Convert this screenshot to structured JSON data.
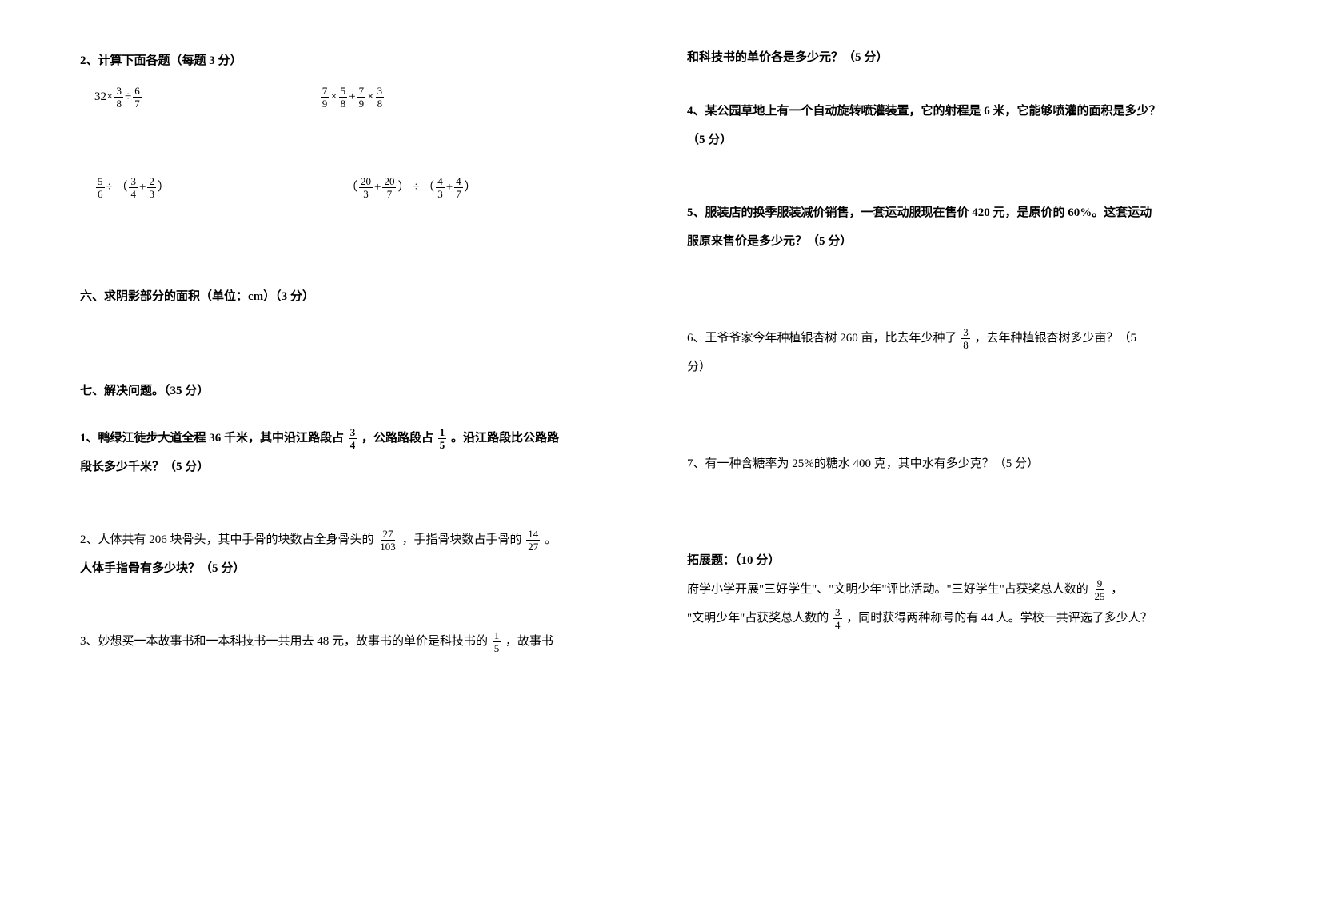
{
  "left": {
    "calc_header": "2、计算下面各题（每题 3 分）",
    "row1": {
      "a_prefix": "32×",
      "a_f1_num": "3",
      "a_f1_den": "8",
      "a_mid": " ÷ ",
      "a_f2_num": "6",
      "a_f2_den": "7",
      "b_f1_num": "7",
      "b_f1_den": "9",
      "b_m1": "×",
      "b_f2_num": "5",
      "b_f2_den": "8",
      "b_m2": "+",
      "b_f3_num": "7",
      "b_f3_den": "9",
      "b_m3": "×",
      "b_f4_num": "3",
      "b_f4_den": "8"
    },
    "row2": {
      "a_f1_num": "5",
      "a_f1_den": "6",
      "a_m1": " ÷ （",
      "a_f2_num": "3",
      "a_f2_den": "4",
      "a_m2": "+",
      "a_f3_num": "2",
      "a_f3_den": "3",
      "a_suffix": "）",
      "b_prefix": "（",
      "b_f1_num": "20",
      "b_f1_den": "3",
      "b_m1": "+",
      "b_f2_num": "20",
      "b_f2_den": "7",
      "b_m2": "） ÷ （",
      "b_f3_num": "4",
      "b_f3_den": "3",
      "b_m3": "+",
      "b_f4_num": "4",
      "b_f4_den": "7",
      "b_suffix": "）"
    },
    "section6": "六、求阴影部分的面积（单位：cm）（3 分）",
    "section7": "七、解决问题。（35 分）",
    "p1_a": "1、鸭绿江徒步大道全程 36 千米，其中沿江路段占",
    "p1_f1_num": "3",
    "p1_f1_den": "4",
    "p1_b": "，公路路段占",
    "p1_f2_num": "1",
    "p1_f2_den": "5",
    "p1_c": "。沿江路段比公路路",
    "p1_d": "段长多少千米？（5 分）",
    "p2_a": "2、人体共有 206 块骨头，其中手骨的块数占全身骨头的",
    "p2_f1_num": "27",
    "p2_f1_den": "103",
    "p2_b": "，手指骨块数占手骨的",
    "p2_f2_num": "14",
    "p2_f2_den": "27",
    "p2_c": "。",
    "p2_d": "人体手指骨有多少块？（5 分）",
    "p3_a": "3、妙想买一本故事书和一本科技书一共用去 48 元，故事书的单价是科技书的",
    "p3_f_num": "1",
    "p3_f_den": "5",
    "p3_b": "，故事书"
  },
  "right": {
    "cont": "和科技书的单价各是多少元？（5 分）",
    "p4_a": "4、某公园草地上有一个自动旋转喷灌装置，它的射程是 6 米，它能够喷灌的面积是多少？",
    "p4_b": "（5 分）",
    "p5_a": "5、服装店的换季服装减价销售，一套运动服现在售价 420 元，是原价的 60%。这套运动",
    "p5_b": "服原来售价是多少元？（5 分）",
    "p6_a": "6、王爷爷家今年种植银杏树 260 亩，比去年少种了",
    "p6_f_num": "3",
    "p6_f_den": "8",
    "p6_b": "，去年种植银杏树多少亩？（5",
    "p6_c": "分）",
    "p7": "7、有一种含糖率为 25%的糖水 400 克，其中水有多少克？（5 分）",
    "ext_title": "拓展题：（10 分）",
    "ext_a": "府学小学开展\"三好学生\"、\"文明少年\"评比活动。\"三好学生\"占获奖总人数的",
    "ext_f1_num": "9",
    "ext_f1_den": "25",
    "ext_b": "，",
    "ext_c": "\"文明少年\"占获奖总人数的",
    "ext_f2_num": "3",
    "ext_f2_den": "4",
    "ext_d": "，同时获得两种称号的有 44 人。学校一共评选了多少人？"
  }
}
